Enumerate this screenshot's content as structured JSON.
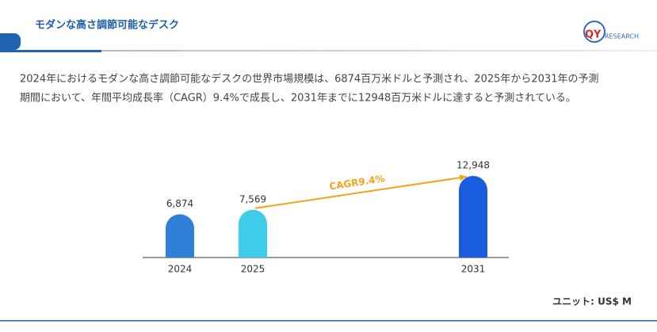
{
  "header": {
    "title": "モダンな高さ調節可能なデスク",
    "logo_mark": "QY",
    "logo_text": "RESEARCH"
  },
  "description": [
    "2024年におけるモダンな高さ調節可能なデスクの世界市場規模は、6874百万米ドルと予測され、2025年から2031年の予測",
    "期間において、年間平均成長率（CAGR）9.4%で成長し、2031年までに12948百万米ドルに達すると予測されている。"
  ],
  "chart_data": {
    "type": "bar",
    "categories": [
      "2024",
      "2025",
      "2031"
    ],
    "values": [
      6874,
      7569,
      12948
    ],
    "value_labels": [
      "6,874",
      "7,569",
      "12,948"
    ],
    "colors": [
      "#2f80d8",
      "#3fcbea",
      "#1a5ce0"
    ],
    "annotation": "CAGR9.4%",
    "annotation_color": "#f5a21b",
    "unit": "ユニット: US$ M"
  }
}
